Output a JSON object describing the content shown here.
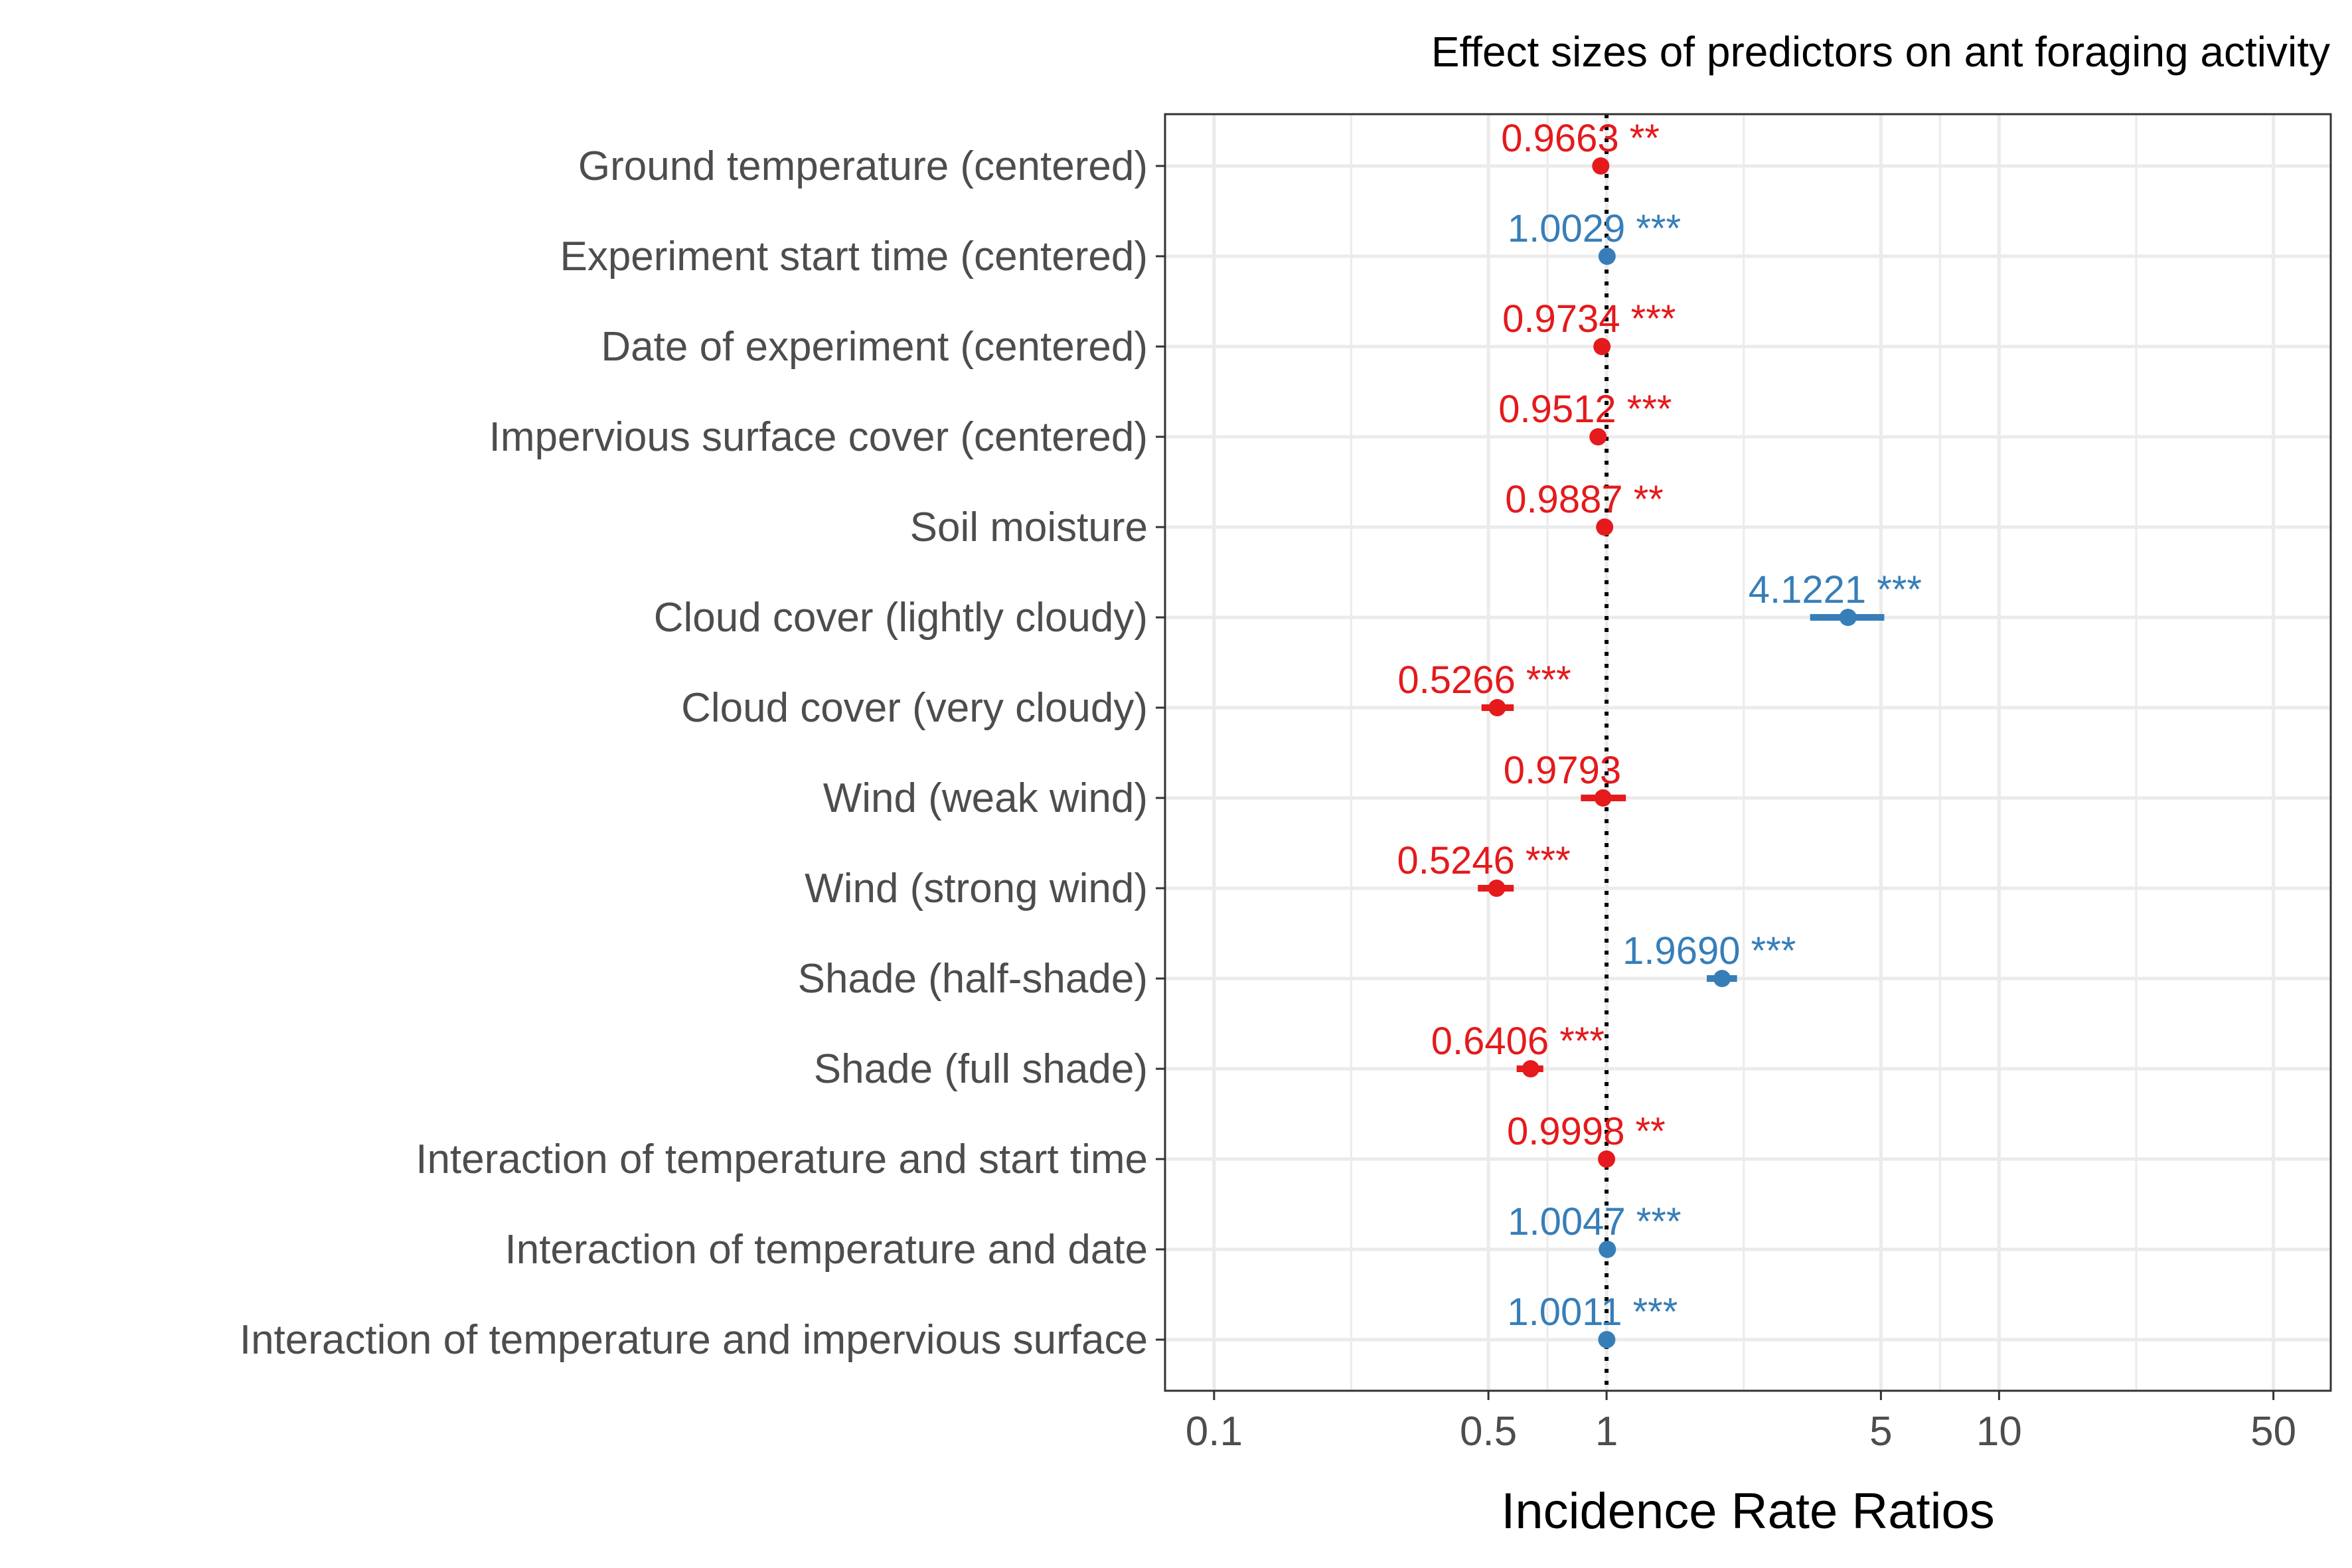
{
  "chart_data": {
    "type": "forest",
    "title": "Effect sizes of predictors on ant foraging activity",
    "xlabel": "Incidence Rate Ratios",
    "ylabel": "",
    "x_scale": "log10",
    "xlim": [
      0.075,
      70
    ],
    "x_ticks": [
      0.1,
      0.5,
      1,
      5,
      10,
      50
    ],
    "x_tick_labels": [
      "0.1",
      "0.5",
      "1",
      "5",
      "10",
      "50"
    ],
    "reference_line": 1,
    "grid": true,
    "colors": {
      "negative": "#e41a1c",
      "positive": "#377eb8",
      "reference": "#000000"
    },
    "rows": [
      {
        "term": "Ground temperature (centered)",
        "estimate": 0.9663,
        "ci": [
          0.946,
          0.987
        ],
        "stars": "**",
        "label": "0.9663 **",
        "direction": "negative"
      },
      {
        "term": "Experiment start time (centered)",
        "estimate": 1.0029,
        "ci": [
          1.002,
          1.004
        ],
        "stars": "***",
        "label": "1.0029 ***",
        "direction": "positive"
      },
      {
        "term": "Date of experiment (centered)",
        "estimate": 0.9734,
        "ci": [
          0.965,
          0.982
        ],
        "stars": "***",
        "label": "0.9734 ***",
        "direction": "negative"
      },
      {
        "term": "Impervious surface cover (centered)",
        "estimate": 0.9512,
        "ci": [
          0.935,
          0.968
        ],
        "stars": "***",
        "label": "0.9512 ***",
        "direction": "negative"
      },
      {
        "term": "Soil moisture",
        "estimate": 0.9887,
        "ci": [
          0.981,
          0.996
        ],
        "stars": "**",
        "label": "0.9887 **",
        "direction": "negative"
      },
      {
        "term": "Cloud cover (lightly cloudy)",
        "estimate": 4.1221,
        "ci": [
          3.3,
          5.1
        ],
        "stars": "***",
        "label": "4.1221 ***",
        "direction": "positive"
      },
      {
        "term": "Cloud cover (very cloudy)",
        "estimate": 0.5266,
        "ci": [
          0.48,
          0.58
        ],
        "stars": "***",
        "label": "0.5266 ***",
        "direction": "negative"
      },
      {
        "term": "Wind (weak wind)",
        "estimate": 0.9793,
        "ci": [
          0.86,
          1.12
        ],
        "stars": "",
        "label": "0.9793",
        "direction": "negative"
      },
      {
        "term": "Wind (strong wind)",
        "estimate": 0.5246,
        "ci": [
          0.47,
          0.58
        ],
        "stars": "***",
        "label": "0.5246 ***",
        "direction": "negative"
      },
      {
        "term": "Shade (half-shade)",
        "estimate": 1.969,
        "ci": [
          1.8,
          2.15
        ],
        "stars": "***",
        "label": "1.9690 ***",
        "direction": "positive"
      },
      {
        "term": "Shade (full shade)",
        "estimate": 0.6406,
        "ci": [
          0.59,
          0.69
        ],
        "stars": "***",
        "label": "0.6406 ***",
        "direction": "negative"
      },
      {
        "term": "Interaction of temperature and start time",
        "estimate": 0.9998,
        "ci": [
          0.9997,
          0.9999
        ],
        "stars": "**",
        "label": "0.9998 **",
        "direction": "negative"
      },
      {
        "term": "Interaction of temperature and date",
        "estimate": 1.0047,
        "ci": [
          1.003,
          1.006
        ],
        "stars": "***",
        "label": "1.0047 ***",
        "direction": "positive"
      },
      {
        "term": "Interaction of temperature and impervious surface",
        "estimate": 1.0011,
        "ci": [
          1.0006,
          1.0016
        ],
        "stars": "***",
        "label": "1.0011 ***",
        "direction": "positive"
      }
    ]
  }
}
